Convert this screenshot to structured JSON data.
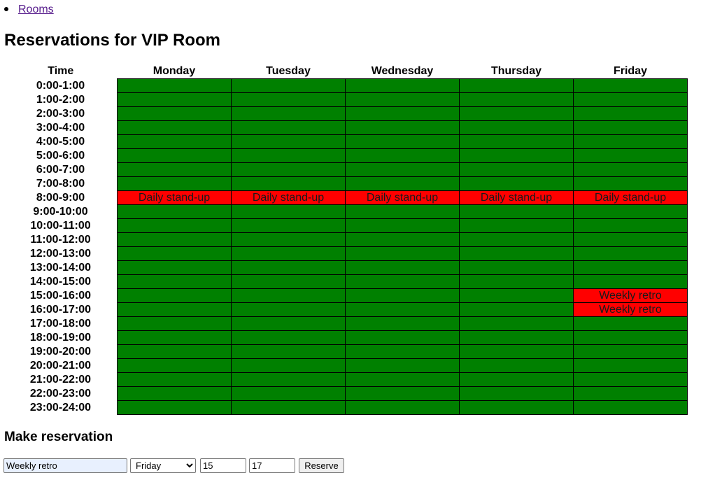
{
  "nav": {
    "rooms_link": "Rooms"
  },
  "title": "Reservations for VIP Room",
  "table": {
    "time_header": "Time",
    "days": [
      "Monday",
      "Tuesday",
      "Wednesday",
      "Thursday",
      "Friday"
    ],
    "time_slots": [
      "0:00-1:00",
      "1:00-2:00",
      "2:00-3:00",
      "3:00-4:00",
      "4:00-5:00",
      "5:00-6:00",
      "6:00-7:00",
      "7:00-8:00",
      "8:00-9:00",
      "9:00-10:00",
      "10:00-11:00",
      "11:00-12:00",
      "12:00-13:00",
      "13:00-14:00",
      "14:00-15:00",
      "15:00-16:00",
      "16:00-17:00",
      "17:00-18:00",
      "18:00-19:00",
      "19:00-20:00",
      "20:00-21:00",
      "21:00-22:00",
      "22:00-23:00",
      "23:00-24:00"
    ],
    "reservations": [
      {
        "day": 0,
        "hour": 8,
        "label": "Daily stand-up"
      },
      {
        "day": 1,
        "hour": 8,
        "label": "Daily stand-up"
      },
      {
        "day": 2,
        "hour": 8,
        "label": "Daily stand-up"
      },
      {
        "day": 3,
        "hour": 8,
        "label": "Daily stand-up"
      },
      {
        "day": 4,
        "hour": 8,
        "label": "Daily stand-up"
      },
      {
        "day": 4,
        "hour": 15,
        "label": "Weekly retro"
      },
      {
        "day": 4,
        "hour": 16,
        "label": "Weekly retro"
      }
    ],
    "colors": {
      "free": "#008000",
      "reserved": "#ff0000"
    }
  },
  "form": {
    "heading": "Make reservation",
    "title_value": "Weekly retro",
    "day_value": "Friday",
    "start_value": "15",
    "end_value": "17",
    "submit_label": "Reserve"
  }
}
